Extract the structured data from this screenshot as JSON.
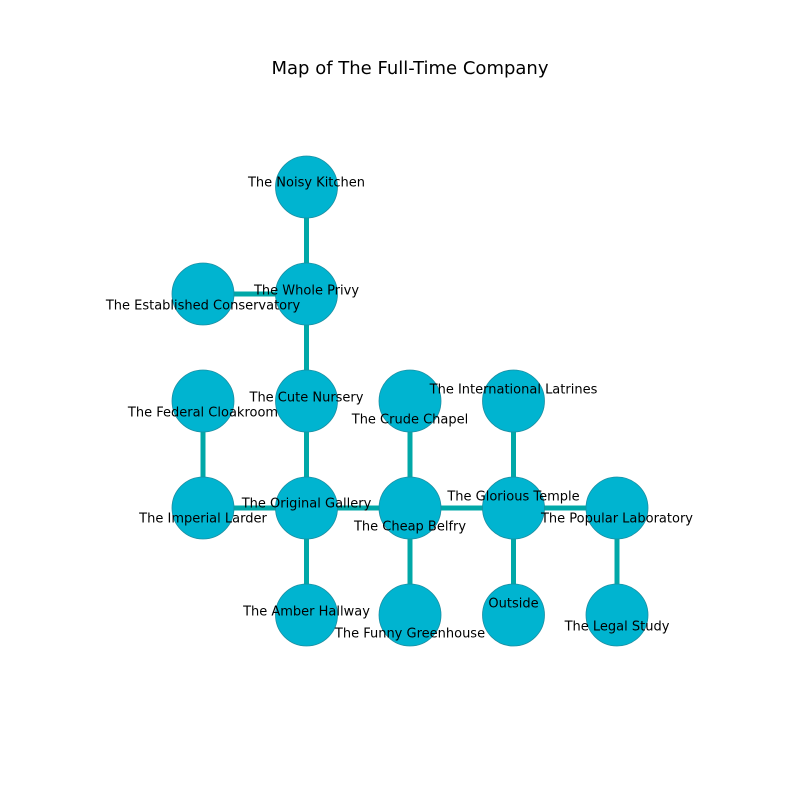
{
  "title": "Map of The Full-Time Company",
  "colors": {
    "node_fill": "#00b4d0",
    "node_stroke": "#1a8fa3",
    "edge": "#00a8a8"
  },
  "nodes": [
    {
      "id": "noisy-kitchen",
      "label": "The Noisy Kitchen",
      "col": 1,
      "row": 0
    },
    {
      "id": "established-conservatory",
      "label": "The Established Conservatory",
      "col": 0,
      "row": 1
    },
    {
      "id": "whole-privy",
      "label": "The Whole Privy",
      "col": 1,
      "row": 1
    },
    {
      "id": "federal-cloakroom",
      "label": "The Federal Cloakroom",
      "col": 0,
      "row": 2
    },
    {
      "id": "cute-nursery",
      "label": "The Cute Nursery",
      "col": 1,
      "row": 2
    },
    {
      "id": "crude-chapel",
      "label": "The Crude Chapel",
      "col": 2,
      "row": 2
    },
    {
      "id": "international-latrines",
      "label": "The International Latrines",
      "col": 3,
      "row": 2
    },
    {
      "id": "imperial-larder",
      "label": "The Imperial Larder",
      "col": 0,
      "row": 3
    },
    {
      "id": "original-gallery",
      "label": "The Original Gallery",
      "col": 1,
      "row": 3
    },
    {
      "id": "cheap-belfry",
      "label": "The Cheap Belfry",
      "col": 2,
      "row": 3
    },
    {
      "id": "glorious-temple",
      "label": "The Glorious Temple",
      "col": 3,
      "row": 3
    },
    {
      "id": "popular-laboratory",
      "label": "The Popular Laboratory",
      "col": 4,
      "row": 3
    },
    {
      "id": "amber-hallway",
      "label": "The Amber Hallway",
      "col": 1,
      "row": 4
    },
    {
      "id": "funny-greenhouse",
      "label": "The Funny Greenhouse",
      "col": 2,
      "row": 4
    },
    {
      "id": "outside",
      "label": "Outside",
      "col": 3,
      "row": 4
    },
    {
      "id": "legal-study",
      "label": "The Legal Study",
      "col": 4,
      "row": 4
    }
  ],
  "edges": [
    [
      "noisy-kitchen",
      "whole-privy"
    ],
    [
      "established-conservatory",
      "whole-privy"
    ],
    [
      "whole-privy",
      "cute-nursery"
    ],
    [
      "cute-nursery",
      "original-gallery"
    ],
    [
      "federal-cloakroom",
      "imperial-larder"
    ],
    [
      "imperial-larder",
      "original-gallery"
    ],
    [
      "original-gallery",
      "cheap-belfry"
    ],
    [
      "original-gallery",
      "amber-hallway"
    ],
    [
      "crude-chapel",
      "cheap-belfry"
    ],
    [
      "cheap-belfry",
      "glorious-temple"
    ],
    [
      "cheap-belfry",
      "funny-greenhouse"
    ],
    [
      "international-latrines",
      "glorious-temple"
    ],
    [
      "glorious-temple",
      "popular-laboratory"
    ],
    [
      "glorious-temple",
      "outside"
    ],
    [
      "popular-laboratory",
      "legal-study"
    ]
  ]
}
